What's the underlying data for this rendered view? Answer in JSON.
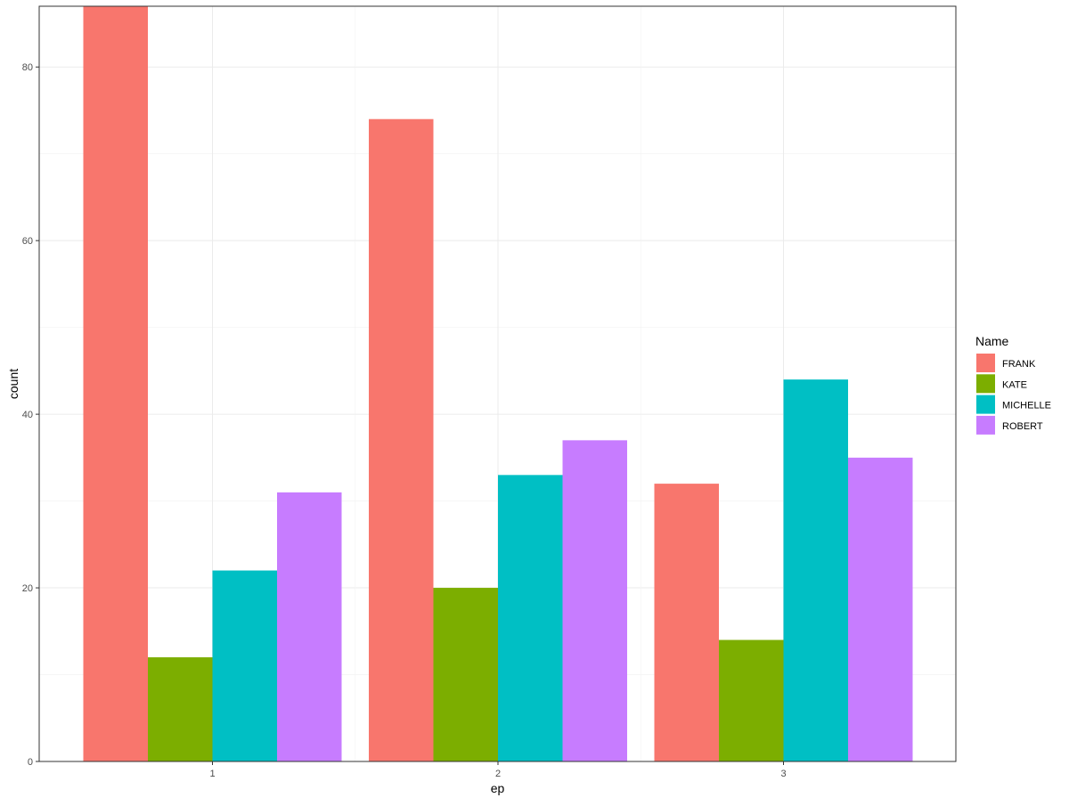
{
  "chart_data": {
    "type": "bar",
    "title": "",
    "xlabel": "ep",
    "ylabel": "count",
    "categories": [
      "1",
      "2",
      "3"
    ],
    "ylim": [
      0,
      87
    ],
    "yticks": [
      0,
      20,
      40,
      60,
      80
    ],
    "grid": true,
    "legend": {
      "title": "Name",
      "placement": "right"
    },
    "series": [
      {
        "name": "FRANK",
        "color": "#F8766D",
        "values": [
          87,
          74,
          32
        ]
      },
      {
        "name": "KATE",
        "color": "#7CAE00",
        "values": [
          12,
          20,
          14
        ]
      },
      {
        "name": "MICHELLE",
        "color": "#00BFC4",
        "values": [
          22,
          33,
          44
        ]
      },
      {
        "name": "ROBERT",
        "color": "#C77CFF",
        "values": [
          31,
          37,
          35
        ]
      }
    ]
  }
}
